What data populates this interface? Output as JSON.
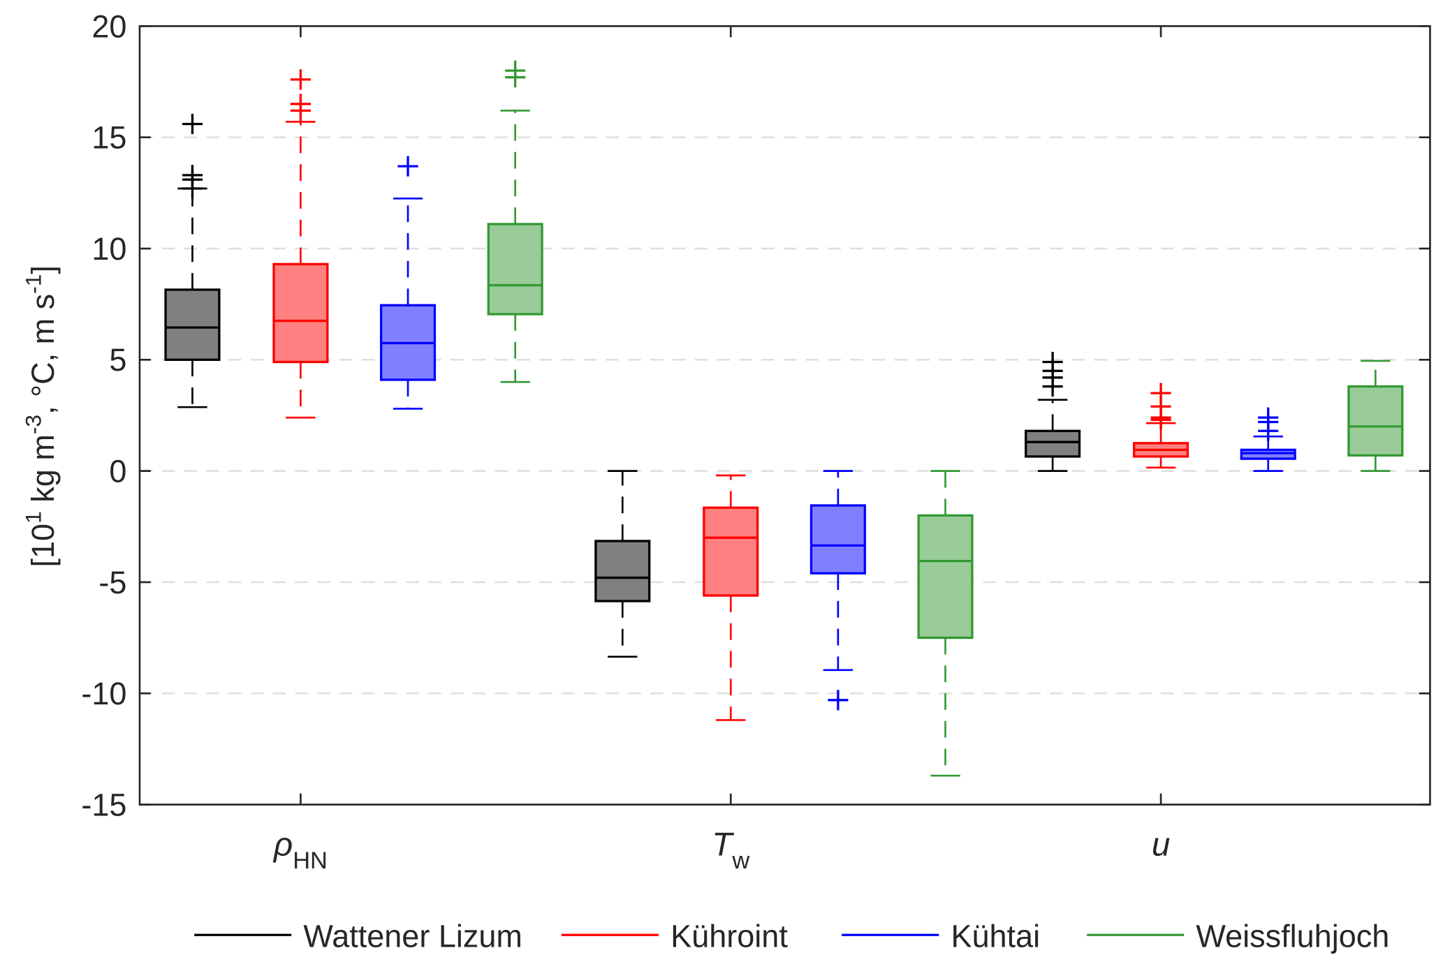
{
  "chart_data": {
    "type": "boxplot",
    "ylabel": "[10^1 kg m^-3, °C, m s^-1]",
    "ylabel_parts": {
      "a": "[10",
      "b": "1",
      "c": " kg m",
      "d": "-3",
      "e": ", °C, m s",
      "f": "-1",
      "g": "]"
    },
    "ylim": [
      -15,
      20
    ],
    "yticks": [
      -15,
      -10,
      -5,
      0,
      5,
      10,
      15,
      20
    ],
    "ytick_labels": [
      "-15",
      "-10",
      "-5",
      "0",
      "5",
      "10",
      "15",
      "20"
    ],
    "grid": "horizontal dashed",
    "legend_placement": "bottom",
    "categories": [
      {
        "main": "ρ",
        "sub": "HN"
      },
      {
        "main": "T",
        "sub": "w"
      },
      {
        "main": "u",
        "sub": ""
      }
    ],
    "series": [
      {
        "name": "Wattener Lizum",
        "color": "#000000",
        "fill": "#808080",
        "boxes": [
          {
            "low": 2.87,
            "q1": 5.0,
            "median": 6.45,
            "q3": 8.15,
            "high": 12.7,
            "outliers": [
              12.7,
              13.1,
              13.3,
              15.6
            ]
          },
          {
            "low": -8.35,
            "q1": -5.85,
            "median": -4.8,
            "q3": -3.15,
            "high": 0.0,
            "outliers": []
          },
          {
            "low": 0.0,
            "q1": 0.65,
            "median": 1.3,
            "q3": 1.8,
            "high": 3.2,
            "outliers": [
              3.8,
              4.2,
              4.5,
              4.9
            ]
          }
        ]
      },
      {
        "name": "Kühroint",
        "color": "#ff0000",
        "fill": "#ff8080",
        "boxes": [
          {
            "low": 2.4,
            "q1": 4.9,
            "median": 6.75,
            "q3": 9.3,
            "high": 15.7,
            "outliers": [
              16.2,
              16.5,
              17.6
            ]
          },
          {
            "low": -11.2,
            "q1": -5.6,
            "median": -3.0,
            "q3": -1.65,
            "high": -0.2,
            "outliers": []
          },
          {
            "low": 0.15,
            "q1": 0.65,
            "median": 0.95,
            "q3": 1.25,
            "high": 2.15,
            "outliers": [
              2.3,
              2.4,
              2.9,
              3.5
            ]
          }
        ]
      },
      {
        "name": "Kühtai",
        "color": "#0000ff",
        "fill": "#8080ff",
        "boxes": [
          {
            "low": 2.8,
            "q1": 4.1,
            "median": 5.75,
            "q3": 7.45,
            "high": 12.25,
            "outliers": [
              13.7
            ]
          },
          {
            "low": -8.95,
            "q1": -4.6,
            "median": -3.35,
            "q3": -1.55,
            "high": 0.0,
            "outliers": [
              -10.3
            ]
          },
          {
            "low": 0.0,
            "q1": 0.55,
            "median": 0.8,
            "q3": 0.95,
            "high": 1.55,
            "outliers": [
              1.8,
              2.2,
              2.4
            ]
          }
        ]
      },
      {
        "name": "Weissfluhjoch",
        "color": "#339933",
        "fill": "#99cc99",
        "boxes": [
          {
            "low": 4.0,
            "q1": 7.05,
            "median": 8.35,
            "q3": 11.1,
            "high": 16.2,
            "outliers": [
              17.7,
              18.0
            ]
          },
          {
            "low": -13.7,
            "q1": -7.5,
            "median": -4.05,
            "q3": -2.0,
            "high": 0.0,
            "outliers": []
          },
          {
            "low": 0.0,
            "q1": 0.7,
            "median": 2.0,
            "q3": 3.8,
            "high": 4.95,
            "outliers": []
          }
        ]
      }
    ]
  }
}
